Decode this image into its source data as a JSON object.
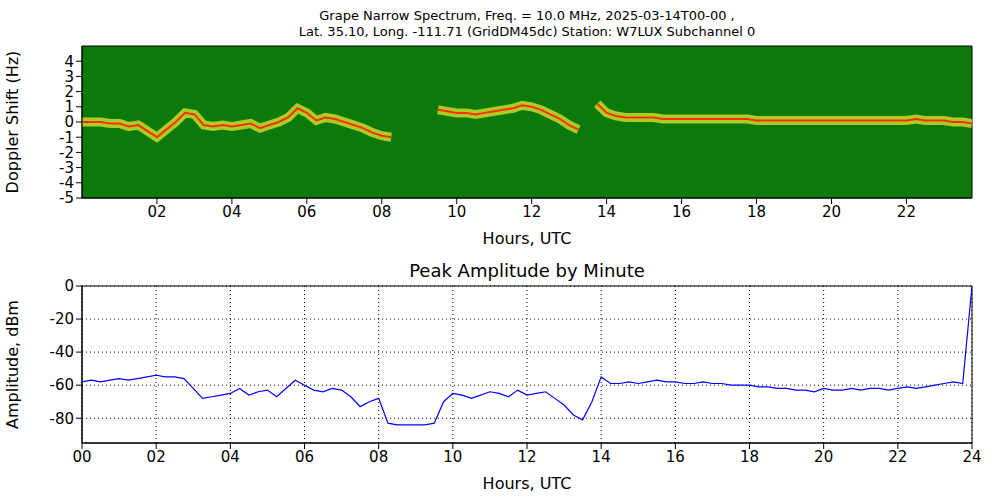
{
  "chart_data": [
    {
      "type": "spectrogram",
      "title": "Grape Narrow Spectrum, Freq. = 10.0 MHz, 2025-03-14T00-00 ,",
      "subtitle": "Lat.  35.10, Long. -111.71 (GridDM45dc) Station: W7LUX Subchannel 0",
      "x_label": "Hours, UTC",
      "y_label": "Doppler Shift (Hz)",
      "x": [
        0,
        0.25,
        0.5,
        0.75,
        1,
        1.25,
        1.5,
        1.75,
        2,
        2.25,
        2.5,
        2.75,
        3,
        3.25,
        3.5,
        3.75,
        4,
        4.25,
        4.5,
        4.75,
        5,
        5.25,
        5.5,
        5.75,
        6,
        6.25,
        6.5,
        6.75,
        7,
        7.25,
        7.5,
        7.75,
        8,
        8.25,
        8.5,
        8.75,
        9,
        9.25,
        9.5,
        9.75,
        10,
        10.25,
        10.5,
        10.75,
        11,
        11.25,
        11.5,
        11.75,
        12,
        12.25,
        12.5,
        12.75,
        13,
        13.25,
        13.5,
        13.75,
        14,
        14.25,
        14.5,
        14.75,
        15,
        15.25,
        15.5,
        15.75,
        16,
        16.25,
        16.5,
        16.75,
        17,
        17.25,
        17.5,
        17.75,
        18,
        18.25,
        18.5,
        18.75,
        19,
        19.25,
        19.5,
        19.75,
        20,
        20.25,
        20.5,
        20.75,
        21,
        21.25,
        21.5,
        21.75,
        22,
        22.25,
        22.5,
        22.75,
        23,
        23.25,
        23.5,
        23.75
      ],
      "values": [
        0,
        0,
        0,
        -0.1,
        -0.1,
        -0.3,
        -0.2,
        -0.6,
        -1.0,
        -0.5,
        0,
        0.6,
        0.5,
        -0.2,
        -0.3,
        -0.2,
        -0.3,
        -0.2,
        -0.1,
        -0.4,
        -0.2,
        0,
        0.3,
        0.9,
        0.6,
        0.1,
        0.3,
        0.2,
        0,
        -0.2,
        -0.4,
        -0.7,
        -0.9,
        -1.0,
        null,
        null,
        null,
        null,
        0.8,
        0.7,
        0.6,
        0.6,
        0.5,
        0.6,
        0.7,
        0.8,
        0.9,
        1.1,
        1.0,
        0.8,
        0.5,
        0.2,
        -0.2,
        -0.5,
        null,
        1.2,
        0.6,
        0.4,
        0.3,
        0.3,
        0.3,
        0.3,
        0.2,
        0.2,
        0.2,
        0.2,
        0.2,
        0.2,
        0.2,
        0.2,
        0.2,
        0.2,
        0.1,
        0.1,
        0.1,
        0.1,
        0.1,
        0.1,
        0.1,
        0.1,
        0.1,
        0.1,
        0.1,
        0.1,
        0.1,
        0.1,
        0.1,
        0.1,
        0.1,
        0.2,
        0.1,
        0.1,
        0.1,
        0,
        0,
        -0.1
      ],
      "color": "#ff3000",
      "xlim": [
        0,
        23.75
      ],
      "xticks": [
        {
          "value": 2,
          "label": "02"
        },
        {
          "value": 4,
          "label": "04"
        },
        {
          "value": 6,
          "label": "06"
        },
        {
          "value": 8,
          "label": "08"
        },
        10,
        12,
        14,
        16,
        18,
        20,
        22
      ],
      "ylim": [
        -5,
        5
      ],
      "yticks": [
        4,
        3,
        2,
        1,
        0,
        -1,
        -2,
        -3,
        -4,
        -5
      ],
      "grid": false
    },
    {
      "type": "line",
      "title": "Peak Amplitude by Minute",
      "x_label": "Hours, UTC",
      "y_label": "Amplitude, dBm",
      "x": [
        0,
        0.25,
        0.5,
        0.75,
        1,
        1.25,
        1.5,
        1.75,
        2,
        2.25,
        2.5,
        2.75,
        3,
        3.25,
        3.5,
        3.75,
        4,
        4.25,
        4.5,
        4.75,
        5,
        5.25,
        5.5,
        5.75,
        6,
        6.25,
        6.5,
        6.75,
        7,
        7.25,
        7.5,
        7.75,
        8,
        8.25,
        8.5,
        8.75,
        9,
        9.25,
        9.5,
        9.75,
        10,
        10.25,
        10.5,
        10.75,
        11,
        11.25,
        11.5,
        11.75,
        12,
        12.25,
        12.5,
        12.75,
        13,
        13.25,
        13.5,
        13.75,
        14,
        14.25,
        14.5,
        14.75,
        15,
        15.25,
        15.5,
        15.75,
        16,
        16.25,
        16.5,
        16.75,
        17,
        17.25,
        17.5,
        17.75,
        18,
        18.25,
        18.5,
        18.75,
        19,
        19.25,
        19.5,
        19.75,
        20,
        20.25,
        20.5,
        20.75,
        21,
        21.25,
        21.5,
        21.75,
        22,
        22.25,
        22.5,
        22.75,
        23,
        23.25,
        23.5,
        23.75,
        24
      ],
      "values": [
        -58,
        -57,
        -58,
        -57,
        -56,
        -57,
        -56,
        -55,
        -54,
        -55,
        -55,
        -56,
        -62,
        -68,
        -67,
        -66,
        -65,
        -62,
        -66,
        -64,
        -63,
        -67,
        -62,
        -57,
        -60,
        -63,
        -64,
        -62,
        -63,
        -67,
        -73,
        -70,
        -68,
        -83,
        -84,
        -84,
        -84,
        -84,
        -83,
        -70,
        -65,
        -66,
        -68,
        -66,
        -64,
        -65,
        -67,
        -63,
        -66,
        -65,
        -64,
        -68,
        -72,
        -78,
        -81,
        -70,
        -55,
        -59,
        -59,
        -58,
        -59,
        -58,
        -57,
        -58,
        -58,
        -59,
        -59,
        -58,
        -59,
        -59,
        -60,
        -60,
        -60,
        -61,
        -61,
        -62,
        -62,
        -63,
        -63,
        -64,
        -62,
        -63,
        -63,
        -62,
        -63,
        -62,
        -62,
        -63,
        -62,
        -61,
        -62,
        -61,
        -60,
        -59,
        -58,
        -59,
        0
      ],
      "color": "#0000ff",
      "xlim": [
        0,
        24
      ],
      "xticks": [
        {
          "value": 0,
          "label": "00"
        },
        {
          "value": 2,
          "label": "02"
        },
        {
          "value": 4,
          "label": "04"
        },
        {
          "value": 6,
          "label": "06"
        },
        {
          "value": 8,
          "label": "08"
        },
        10,
        12,
        14,
        16,
        18,
        20,
        22,
        24
      ],
      "ylim": [
        -95,
        0
      ],
      "yticks": [
        -80,
        -60,
        -40,
        -20,
        0
      ],
      "grid": true
    }
  ]
}
